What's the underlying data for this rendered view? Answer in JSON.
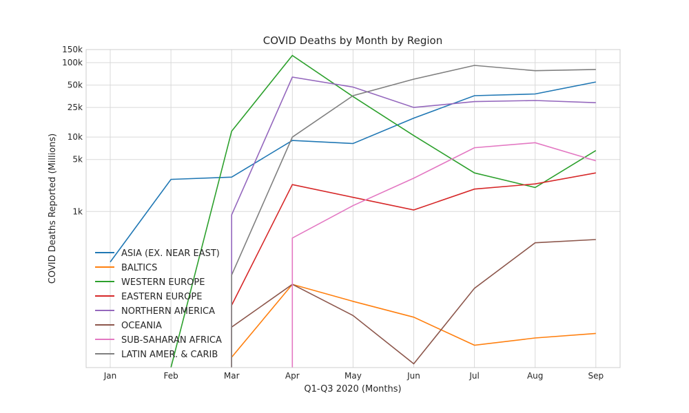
{
  "chart_data": {
    "type": "line",
    "title": "COVID Deaths by Month by Region",
    "xlabel": "Q1-Q3 2020 (Months)",
    "ylabel": "COVID Deaths Reported (Millions)",
    "y_scale": "log",
    "ylim": [
      8,
      150000
    ],
    "grid": true,
    "legend_position": "lower-left",
    "categories": [
      "Jan",
      "Feb",
      "Mar",
      "Apr",
      "May",
      "Jun",
      "Jul",
      "Aug",
      "Sep"
    ],
    "y_ticks": [
      {
        "value": 150000,
        "label": "150k"
      },
      {
        "value": 100000,
        "label": "100k"
      },
      {
        "value": 50000,
        "label": "50k"
      },
      {
        "value": 25000,
        "label": "25k"
      },
      {
        "value": 10000,
        "label": "10k"
      },
      {
        "value": 5000,
        "label": "5k"
      },
      {
        "value": 1000,
        "label": "1k"
      }
    ],
    "series": [
      {
        "name": "ASIA (EX. NEAR EAST)",
        "color": "#1f77b4",
        "values": [
          210,
          2700,
          2900,
          9000,
          8200,
          18000,
          36000,
          38000,
          55000
        ]
      },
      {
        "name": "BALTICS",
        "color": "#ff7f0e",
        "values": [
          null,
          null,
          11,
          105,
          62,
          38,
          16,
          20,
          23
        ]
      },
      {
        "name": "WESTERN EUROPE",
        "color": "#2ca02c",
        "values": [
          null,
          8,
          12000,
          125000,
          35000,
          10500,
          3300,
          2100,
          6600
        ]
      },
      {
        "name": "EASTERN EUROPE",
        "color": "#d62728",
        "values": [
          null,
          null,
          55,
          2300,
          1550,
          1050,
          2000,
          2350,
          3300
        ]
      },
      {
        "name": "NORTHERN AMERICA",
        "color": "#9467bd",
        "values": [
          null,
          null,
          900,
          64000,
          47000,
          25000,
          30000,
          31000,
          29000
        ]
      },
      {
        "name": "OCEANIA",
        "color": "#8c564b",
        "values": [
          null,
          null,
          28,
          105,
          40,
          9,
          93,
          380,
          420
        ]
      },
      {
        "name": "SUB-SAHARAN AFRICA",
        "color": "#e377c2",
        "values": [
          null,
          null,
          null,
          440,
          1200,
          2800,
          7200,
          8400,
          4800
        ]
      },
      {
        "name": "LATIN AMER. & CARIB",
        "color": "#7f7f7f",
        "values": [
          null,
          null,
          140,
          10000,
          36000,
          60000,
          92000,
          78000,
          81000
        ]
      }
    ]
  }
}
